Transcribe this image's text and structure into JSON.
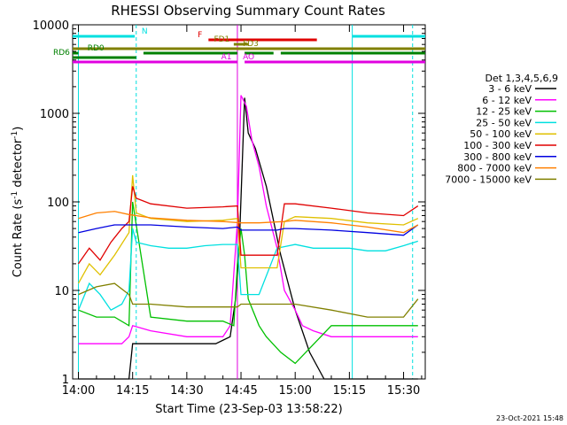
{
  "chart_data": {
    "type": "line",
    "title": "RHESSI Observing Summary Count Rates",
    "xlabel": "Start Time (23-Sep-03 13:58:22)",
    "ylabel": "Count Rate (s⁻¹ detector⁻¹)",
    "ylabel_main": "Count Rate (s",
    "ylabel_sup1": "-1",
    "ylabel_mid": " detector",
    "ylabel_sup2": "-1",
    "ylabel_end": ")",
    "x_ticks": [
      "14:00",
      "14:15",
      "14:30",
      "14:45",
      "15:00",
      "15:15",
      "15:30"
    ],
    "x_tick_minutes": [
      0,
      15,
      30,
      45,
      60,
      75,
      90
    ],
    "xlim_minutes": [
      -1.6,
      96
    ],
    "y_scale": "log",
    "ylim": [
      1,
      10000
    ],
    "y_ticks": [
      "1",
      "10",
      "100",
      "1000",
      "10000"
    ],
    "y_tick_values": [
      1,
      10,
      100,
      1000,
      10000
    ],
    "footer_date": "23-Oct-2021 15:48",
    "legend_title": "Det 1,3,4,5,6,9",
    "series": [
      {
        "name": "3 - 6 keV",
        "color": "#000000",
        "x": [
          0,
          10,
          14,
          15,
          20,
          30,
          38,
          42,
          43.5,
          44.5,
          46,
          47,
          49,
          52,
          56,
          60,
          64,
          68,
          80,
          94
        ],
        "y": [
          1,
          1,
          1,
          2.5,
          2.5,
          2.5,
          2.5,
          3,
          8,
          30,
          1500,
          600,
          400,
          150,
          25,
          6,
          2,
          1,
          1,
          1
        ]
      },
      {
        "name": "6 - 12 keV",
        "color": "#ff00ff",
        "x": [
          0,
          12,
          14,
          15,
          20,
          30,
          40,
          42,
          44,
          45,
          46.5,
          48,
          50,
          52,
          55,
          57,
          60,
          62,
          65,
          70,
          80,
          90,
          94
        ],
        "y": [
          2.5,
          2.5,
          3,
          4,
          3.5,
          3,
          3,
          4,
          60,
          1600,
          1200,
          500,
          250,
          90,
          30,
          10,
          6,
          4,
          3.5,
          3,
          3,
          3,
          3
        ]
      },
      {
        "name": "12 - 25 keV",
        "color": "#00c000",
        "x": [
          0,
          5,
          10,
          14,
          15,
          20,
          30,
          40,
          43,
          44,
          45,
          46,
          47,
          50,
          52,
          56,
          60,
          70,
          80,
          90,
          94
        ],
        "y": [
          6,
          5,
          5,
          4,
          100,
          5,
          4.5,
          4.5,
          4,
          20,
          50,
          25,
          8,
          4,
          3,
          2,
          1.5,
          4,
          4,
          4,
          4
        ]
      },
      {
        "name": "25 - 50 keV",
        "color": "#00e0e0",
        "x": [
          0,
          3,
          6,
          9,
          12,
          14,
          15,
          16,
          20,
          25,
          30,
          35,
          40,
          44,
          45,
          46,
          50,
          55,
          60,
          65,
          70,
          75,
          80,
          85,
          90,
          94
        ],
        "y": [
          6,
          12,
          9,
          6,
          7,
          10,
          50,
          35,
          32,
          30,
          30,
          32,
          33,
          33,
          9,
          9,
          9,
          30,
          33,
          30,
          30,
          30,
          28,
          28,
          32,
          36
        ]
      },
      {
        "name": "50 - 100 keV",
        "color": "#e0c000",
        "x": [
          0,
          3,
          6,
          10,
          14,
          15,
          16,
          20,
          30,
          40,
          44,
          45,
          46,
          50,
          55,
          57,
          60,
          70,
          80,
          90,
          94
        ],
        "y": [
          12,
          20,
          15,
          25,
          45,
          200,
          75,
          65,
          60,
          62,
          65,
          18,
          18,
          18,
          18,
          60,
          68,
          65,
          58,
          55,
          65
        ]
      },
      {
        "name": "100 - 300 keV",
        "color": "#e00000",
        "x": [
          0,
          3,
          6,
          9,
          12,
          14,
          15,
          16,
          20,
          30,
          40,
          44,
          45,
          50,
          55,
          57,
          60,
          70,
          80,
          90,
          94
        ],
        "y": [
          20,
          30,
          22,
          35,
          50,
          60,
          150,
          110,
          95,
          85,
          88,
          90,
          25,
          25,
          25,
          95,
          95,
          85,
          75,
          70,
          90
        ]
      },
      {
        "name": "300 - 800 keV",
        "color": "#0000e0",
        "x": [
          0,
          5,
          10,
          14,
          20,
          30,
          40,
          44,
          45,
          50,
          55,
          57,
          60,
          70,
          80,
          90,
          94
        ],
        "y": [
          45,
          50,
          55,
          55,
          55,
          52,
          50,
          52,
          48,
          48,
          48,
          50,
          50,
          48,
          45,
          42,
          55
        ]
      },
      {
        "name": "800 - 7000 keV",
        "color": "#ff8000",
        "x": [
          0,
          5,
          10,
          14,
          20,
          30,
          40,
          45,
          50,
          57,
          60,
          70,
          80,
          90,
          94
        ],
        "y": [
          65,
          75,
          78,
          72,
          66,
          62,
          60,
          58,
          58,
          60,
          62,
          58,
          52,
          45,
          55
        ]
      },
      {
        "name": "7000 - 15000 keV",
        "color": "#808000",
        "x": [
          0,
          5,
          10,
          14,
          15,
          20,
          30,
          40,
          44,
          45,
          50,
          60,
          70,
          80,
          90,
          94
        ],
        "y": [
          9,
          11,
          12,
          9,
          7,
          7,
          6.5,
          6.5,
          6.5,
          7,
          7,
          7,
          6,
          5,
          5,
          8
        ]
      }
    ],
    "flags": [
      {
        "label": "N",
        "color": "#00e0e0",
        "segments": [
          [
            -1.6,
            15.6
          ],
          [
            75.8,
            96
          ]
        ],
        "level": 0,
        "label_x": 17.5
      },
      {
        "label": "F",
        "color": "#e00000",
        "segments": [
          [
            36,
            66
          ]
        ],
        "level": 0.4,
        "label_x": 33
      },
      {
        "label": "FD1",
        "color": "#808000",
        "segments": [
          [
            43,
            47
          ]
        ],
        "level": 0.9,
        "label_x": 37.5
      },
      {
        "label": "FD3",
        "color": "#808000",
        "segments": [
          [
            -1.6,
            96
          ]
        ],
        "level": 1.4,
        "label_x": 45.5
      },
      {
        "label": "RD0",
        "color": "#008000",
        "segments": [
          [
            -1.6,
            0
          ],
          [
            18,
            44
          ],
          [
            46,
            54
          ],
          [
            56,
            96
          ]
        ],
        "level": 1.9,
        "label_x": 2.5
      },
      {
        "label": "RD6",
        "color": "#008000",
        "segments": [
          [
            -1.6,
            16
          ]
        ],
        "level": 2.4,
        "label_x": -7
      },
      {
        "label": "AO",
        "color": "#e000e0",
        "segments": [
          [
            46,
            96
          ]
        ],
        "level": 2.9,
        "label_x": 45.5
      },
      {
        "label": "A1",
        "color": "#e000e0",
        "segments": [
          [
            -1.6,
            44
          ]
        ],
        "level": 2.9,
        "label_x": 39.5
      }
    ],
    "verticals": [
      {
        "x": 0,
        "color": "#00e0e0",
        "dash": false
      },
      {
        "x": 16,
        "color": "#00e0e0",
        "dash": true
      },
      {
        "x": 44,
        "color": "#e000e0",
        "dash": false
      },
      {
        "x": 75.8,
        "color": "#00e0e0",
        "dash": false
      },
      {
        "x": 92.5,
        "color": "#00e0e0",
        "dash": true
      }
    ]
  }
}
